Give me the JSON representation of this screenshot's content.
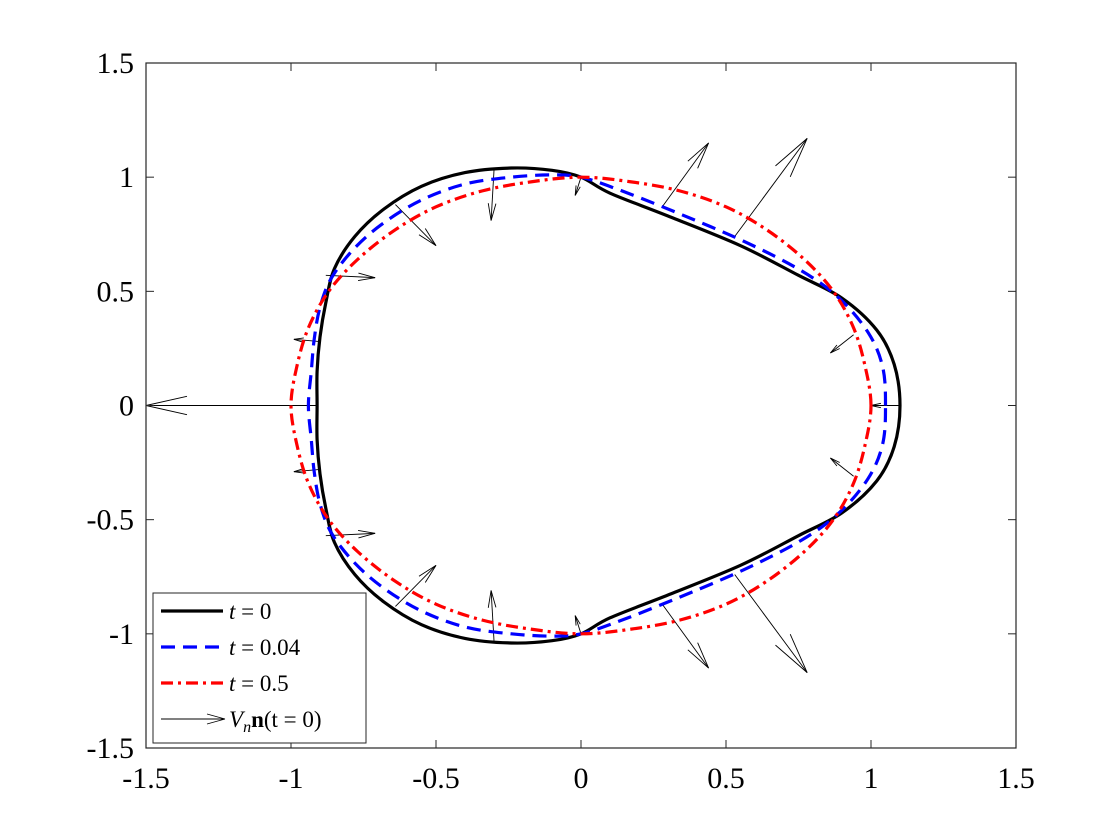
{
  "chart_data": {
    "type": "line",
    "title": "",
    "xlabel": "",
    "ylabel": "",
    "xlim": [
      -1.5,
      1.5
    ],
    "ylim": [
      -1.5,
      1.5
    ],
    "grid": false,
    "legend_position": "bottom-left",
    "xticks": [
      -1.5,
      -1,
      -0.5,
      0,
      0.5,
      1,
      1.5
    ],
    "yticks": [
      -1.5,
      -1,
      -0.5,
      0,
      0.5,
      1,
      1.5
    ],
    "xtick_labels": [
      "-1.5",
      "-1",
      "-0.5",
      "0",
      "0.5",
      "1",
      "1.5"
    ],
    "ytick_labels": [
      "-1.5",
      "-1",
      "-0.5",
      "0",
      "0.5",
      "1",
      "1.5"
    ],
    "series": [
      {
        "name": "t = 0",
        "color": "#000000",
        "style": "solid",
        "closed": true,
        "points": [
          [
            1.1,
            0.0
          ],
          [
            1.08,
            0.18
          ],
          [
            1.02,
            0.33
          ],
          [
            0.9,
            0.47
          ],
          [
            0.75,
            0.57
          ],
          [
            0.55,
            0.7
          ],
          [
            0.3,
            0.83
          ],
          [
            0.1,
            0.93
          ],
          [
            0.0,
            1.0
          ],
          [
            -0.1,
            1.03
          ],
          [
            -0.24,
            1.04
          ],
          [
            -0.4,
            1.02
          ],
          [
            -0.55,
            0.96
          ],
          [
            -0.68,
            0.86
          ],
          [
            -0.78,
            0.74
          ],
          [
            -0.85,
            0.6
          ],
          [
            -0.88,
            0.45
          ],
          [
            -0.9,
            0.3
          ],
          [
            -0.91,
            0.15
          ],
          [
            -0.91,
            0.0
          ],
          [
            -0.91,
            -0.15
          ],
          [
            -0.9,
            -0.3
          ],
          [
            -0.88,
            -0.45
          ],
          [
            -0.85,
            -0.6
          ],
          [
            -0.78,
            -0.74
          ],
          [
            -0.68,
            -0.86
          ],
          [
            -0.55,
            -0.96
          ],
          [
            -0.4,
            -1.02
          ],
          [
            -0.24,
            -1.04
          ],
          [
            -0.1,
            -1.03
          ],
          [
            0.0,
            -1.0
          ],
          [
            0.1,
            -0.93
          ],
          [
            0.3,
            -0.83
          ],
          [
            0.55,
            -0.7
          ],
          [
            0.75,
            -0.57
          ],
          [
            0.9,
            -0.47
          ],
          [
            1.02,
            -0.33
          ],
          [
            1.08,
            -0.18
          ]
        ]
      },
      {
        "name": "t = 0.04",
        "color": "#0000ff",
        "style": "dashed",
        "closed": true,
        "points": [
          [
            1.05,
            0.0
          ],
          [
            1.04,
            0.17
          ],
          [
            0.99,
            0.32
          ],
          [
            0.89,
            0.47
          ],
          [
            0.76,
            0.59
          ],
          [
            0.56,
            0.72
          ],
          [
            0.32,
            0.85
          ],
          [
            0.12,
            0.95
          ],
          [
            0.0,
            1.0
          ],
          [
            -0.1,
            1.01
          ],
          [
            -0.24,
            1.0
          ],
          [
            -0.4,
            0.97
          ],
          [
            -0.55,
            0.9
          ],
          [
            -0.68,
            0.8
          ],
          [
            -0.78,
            0.69
          ],
          [
            -0.86,
            0.56
          ],
          [
            -0.9,
            0.43
          ],
          [
            -0.92,
            0.29
          ],
          [
            -0.93,
            0.15
          ],
          [
            -0.94,
            0.0
          ],
          [
            -0.93,
            -0.15
          ],
          [
            -0.92,
            -0.29
          ],
          [
            -0.9,
            -0.43
          ],
          [
            -0.86,
            -0.56
          ],
          [
            -0.78,
            -0.69
          ],
          [
            -0.68,
            -0.8
          ],
          [
            -0.55,
            -0.9
          ],
          [
            -0.4,
            -0.97
          ],
          [
            -0.24,
            -1.0
          ],
          [
            -0.1,
            -1.01
          ],
          [
            0.0,
            -1.0
          ],
          [
            0.12,
            -0.95
          ],
          [
            0.32,
            -0.85
          ],
          [
            0.56,
            -0.72
          ],
          [
            0.76,
            -0.59
          ],
          [
            0.89,
            -0.47
          ],
          [
            0.99,
            -0.32
          ],
          [
            1.04,
            -0.17
          ]
        ]
      },
      {
        "name": "t = 0.5",
        "color": "#ff0000",
        "style": "dashdot",
        "closed": true,
        "points": [
          [
            1.0,
            0.0
          ],
          [
            0.98,
            0.17
          ],
          [
            0.94,
            0.34
          ],
          [
            0.87,
            0.5
          ],
          [
            0.77,
            0.64
          ],
          [
            0.64,
            0.77
          ],
          [
            0.5,
            0.87
          ],
          [
            0.34,
            0.94
          ],
          [
            0.17,
            0.98
          ],
          [
            0.0,
            1.0
          ],
          [
            -0.17,
            0.98
          ],
          [
            -0.34,
            0.94
          ],
          [
            -0.5,
            0.87
          ],
          [
            -0.64,
            0.77
          ],
          [
            -0.77,
            0.64
          ],
          [
            -0.87,
            0.5
          ],
          [
            -0.94,
            0.34
          ],
          [
            -0.98,
            0.17
          ],
          [
            -1.0,
            0.0
          ],
          [
            -0.98,
            -0.17
          ],
          [
            -0.94,
            -0.34
          ],
          [
            -0.87,
            -0.5
          ],
          [
            -0.77,
            -0.64
          ],
          [
            -0.64,
            -0.77
          ],
          [
            -0.5,
            -0.87
          ],
          [
            -0.34,
            -0.94
          ],
          [
            -0.17,
            -0.98
          ],
          [
            0.0,
            -1.0
          ],
          [
            0.17,
            -0.98
          ],
          [
            0.34,
            -0.94
          ],
          [
            0.5,
            -0.87
          ],
          [
            0.64,
            -0.77
          ],
          [
            0.77,
            -0.64
          ],
          [
            0.87,
            -0.5
          ],
          [
            0.94,
            -0.34
          ],
          [
            0.98,
            -0.17
          ]
        ]
      }
    ],
    "vectors": {
      "name": "V_n n(t = 0)",
      "color": "#000000",
      "segments": [
        [
          -0.91,
          0.0,
          -1.5,
          0.0
        ],
        [
          1.1,
          0.0,
          1.0,
          0.0
        ],
        [
          0.0,
          1.0,
          -0.02,
          0.92
        ],
        [
          0.0,
          -1.0,
          -0.02,
          -0.92
        ],
        [
          0.28,
          0.87,
          0.44,
          1.15
        ],
        [
          0.28,
          -0.87,
          0.44,
          -1.15
        ],
        [
          0.53,
          0.74,
          0.78,
          1.17
        ],
        [
          0.53,
          -0.74,
          0.78,
          -1.17
        ],
        [
          -0.3,
          1.03,
          -0.31,
          0.81
        ],
        [
          -0.3,
          -1.03,
          -0.31,
          -0.81
        ],
        [
          -0.64,
          0.88,
          -0.5,
          0.7
        ],
        [
          -0.64,
          -0.88,
          -0.5,
          -0.7
        ],
        [
          -0.88,
          0.57,
          -0.71,
          0.56
        ],
        [
          -0.88,
          -0.57,
          -0.71,
          -0.56
        ],
        [
          -0.9,
          0.28,
          -0.99,
          0.29
        ],
        [
          -0.9,
          -0.28,
          -0.99,
          -0.29
        ],
        [
          0.94,
          0.31,
          0.86,
          0.23
        ],
        [
          0.94,
          -0.31,
          0.86,
          -0.23
        ]
      ]
    },
    "legend": [
      {
        "label_var": "t",
        "label_rest": " = 0",
        "color": "#000000",
        "style": "solid"
      },
      {
        "label_var": "t",
        "label_rest": " = 0.04",
        "color": "#0000ff",
        "style": "dashed"
      },
      {
        "label_var": "t",
        "label_rest": " = 0.5",
        "color": "#ff0000",
        "style": "dashdot"
      },
      {
        "label_var": "V",
        "label_sub": "n",
        "label_bold": "n",
        "label_rest": "(t = 0)",
        "color": "#000000",
        "style": "arrow"
      }
    ]
  }
}
